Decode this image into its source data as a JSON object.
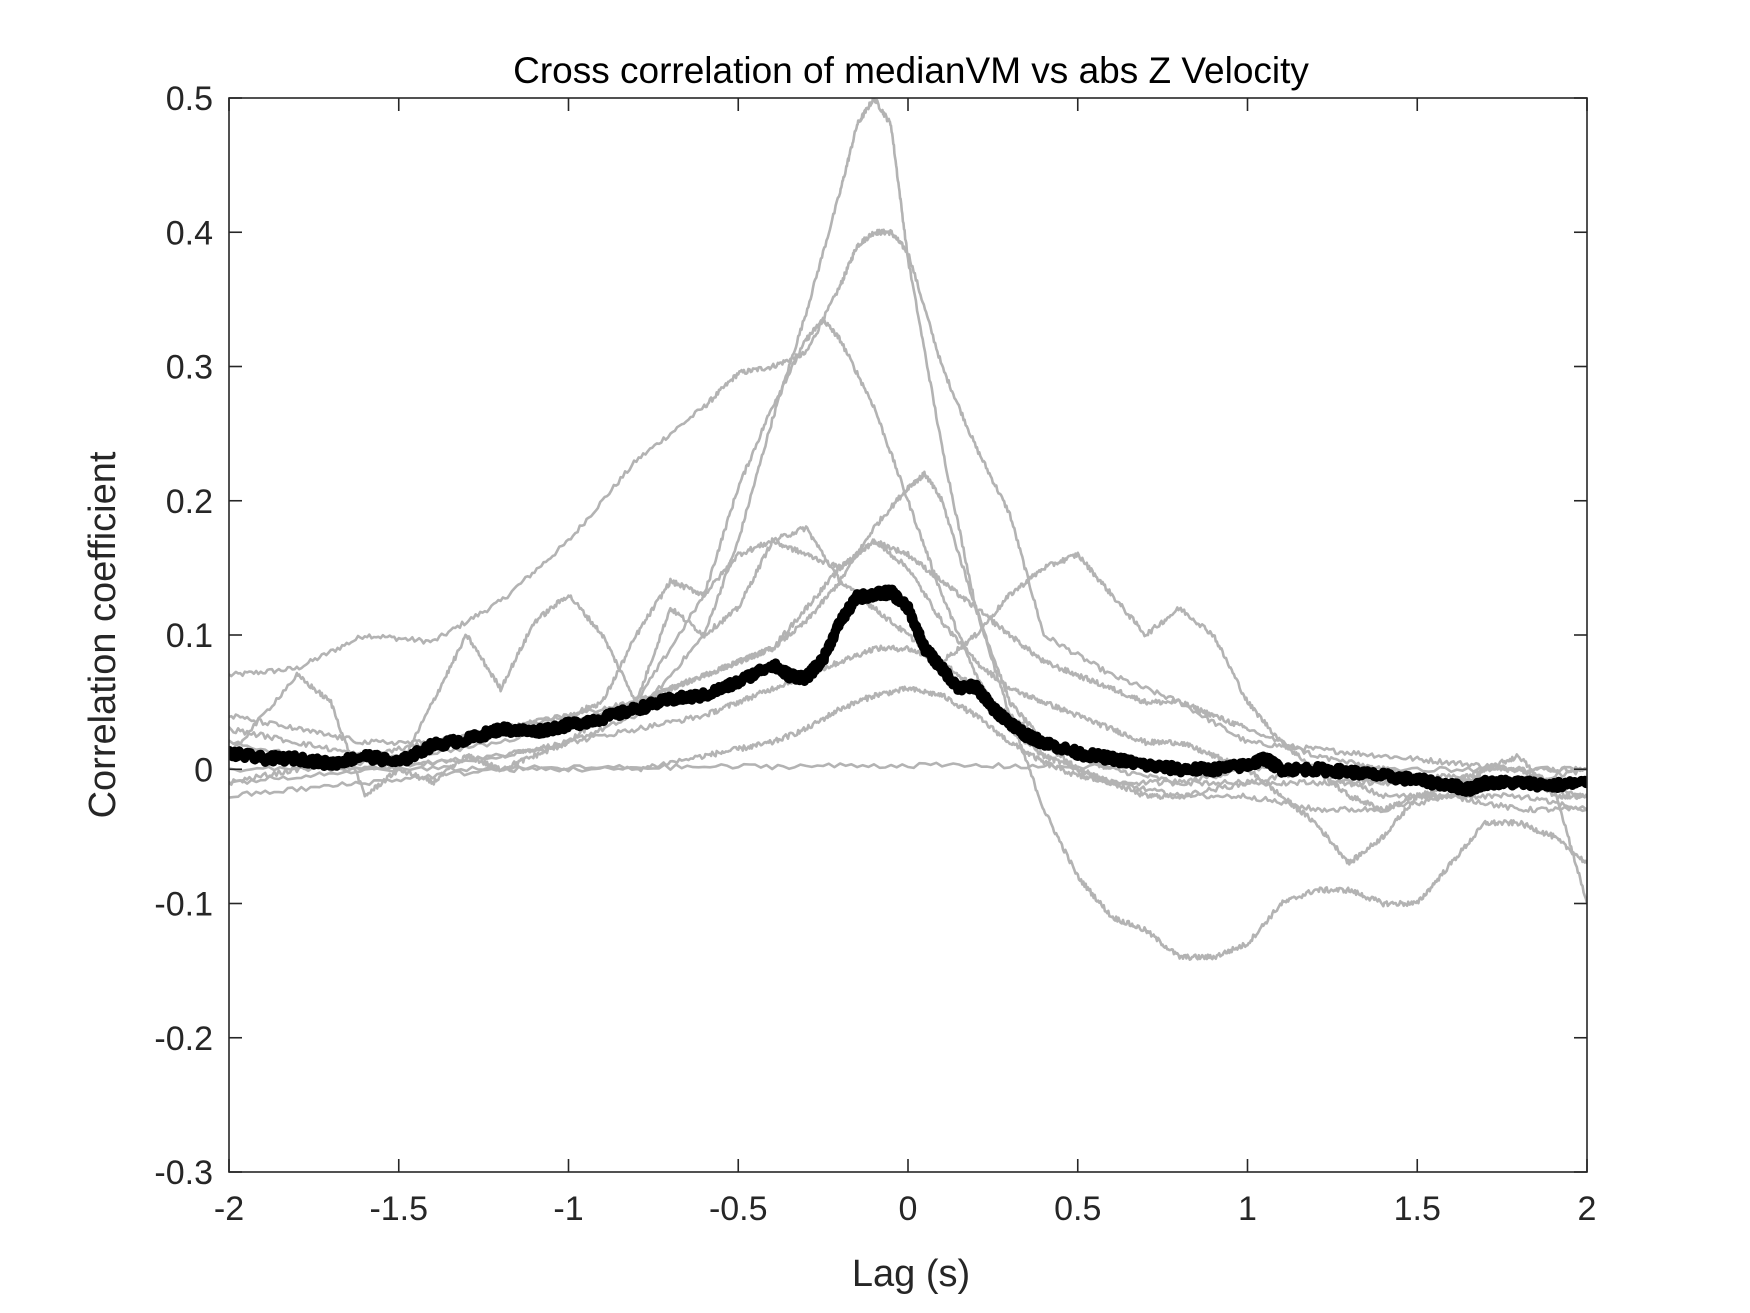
{
  "chart_data": {
    "type": "line",
    "title": "Cross correlation of medianVM vs abs Z Velocity",
    "xlabel": "Lag (s)",
    "ylabel": "Correlation coefficient",
    "xlim": [
      -2,
      2
    ],
    "ylim": [
      -0.3,
      0.5
    ],
    "xticks": [
      -2,
      -1.5,
      -1,
      -0.5,
      0,
      0.5,
      1,
      1.5,
      2
    ],
    "xtick_labels": [
      "-2",
      "-1.5",
      "-1",
      "-0.5",
      "0",
      "0.5",
      "1",
      "1.5",
      "2"
    ],
    "yticks": [
      -0.3,
      -0.2,
      -0.1,
      0,
      0.1,
      0.2,
      0.3,
      0.4,
      0.5
    ],
    "ytick_labels": [
      "-0.3",
      "-0.2",
      "-0.1",
      "0",
      "0.1",
      "0.2",
      "0.3",
      "0.4",
      "0.5"
    ],
    "grid": false,
    "legend": false,
    "colors": {
      "individual": "#b3b3b3",
      "mean": "#000000",
      "axes": "#262626"
    },
    "series": [
      {
        "style": "individual",
        "x": [
          -2,
          -1.8,
          -1.6,
          -1.4,
          -1.2,
          -1.0,
          -0.8,
          -0.6,
          -0.5,
          -0.4,
          -0.3,
          -0.2,
          -0.15,
          -0.1,
          -0.05,
          0,
          0.1,
          0.2,
          0.3,
          0.4,
          0.6,
          0.8,
          1.0,
          1.2,
          1.4,
          1.6,
          1.8,
          2.0
        ],
        "y": [
          0.07,
          0.075,
          0.1,
          0.095,
          0.125,
          0.17,
          0.23,
          0.27,
          0.295,
          0.3,
          0.31,
          0.36,
          0.39,
          0.4,
          0.4,
          0.385,
          0.3,
          0.24,
          0.19,
          0.1,
          0.07,
          0.05,
          0.02,
          0.015,
          0.01,
          0.005,
          0.0,
          0.0
        ]
      },
      {
        "style": "individual",
        "x": [
          -2,
          -1.6,
          -1.2,
          -1.0,
          -0.8,
          -0.6,
          -0.5,
          -0.4,
          -0.3,
          -0.2,
          -0.15,
          -0.1,
          -0.05,
          0,
          0.1,
          0.2,
          0.3,
          0.4,
          0.5,
          0.6,
          0.8,
          1.0,
          1.2,
          1.4,
          1.6,
          1.8,
          2.0
        ],
        "y": [
          0.02,
          0.0,
          0.01,
          0.02,
          0.04,
          0.1,
          0.17,
          0.26,
          0.34,
          0.43,
          0.48,
          0.5,
          0.48,
          0.38,
          0.24,
          0.12,
          0.05,
          0.02,
          0.01,
          0.0,
          -0.01,
          0.0,
          0.0,
          -0.01,
          -0.005,
          -0.01,
          0.0
        ]
      },
      {
        "style": "individual",
        "x": [
          -2,
          -1.6,
          -1.2,
          -0.8,
          -0.6,
          -0.5,
          -0.4,
          -0.3,
          -0.25,
          -0.2,
          -0.1,
          0,
          0.1,
          0.2,
          0.3,
          0.4,
          0.5,
          0.6,
          0.8,
          1.0,
          1.2,
          1.4,
          1.6,
          1.8,
          2.0
        ],
        "y": [
          0.01,
          0.005,
          0.02,
          0.05,
          0.13,
          0.21,
          0.27,
          0.32,
          0.335,
          0.32,
          0.27,
          0.2,
          0.13,
          0.07,
          0.03,
          0.01,
          0.0,
          -0.01,
          -0.02,
          -0.01,
          0.0,
          -0.02,
          -0.02,
          -0.03,
          -0.03
        ]
      },
      {
        "style": "individual",
        "x": [
          -2,
          -1.8,
          -1.6,
          -1.5,
          -1.4,
          -1.3,
          -1.2,
          -1.1,
          -1.0,
          -0.9,
          -0.8,
          -0.7,
          -0.6,
          -0.5,
          -0.4,
          -0.3,
          -0.2,
          -0.1,
          0,
          0.05,
          0.1,
          0.2,
          0.3,
          0.4,
          0.5,
          0.6,
          0.7,
          0.8,
          0.9,
          1.0,
          1.1,
          1.2,
          1.3,
          1.4,
          1.5,
          1.6,
          1.7,
          1.8,
          1.9,
          2.0
        ],
        "y": [
          -0.01,
          0.0,
          0.01,
          0.0,
          -0.01,
          0.01,
          0.0,
          0.01,
          0.02,
          0.04,
          0.05,
          0.06,
          0.07,
          0.08,
          0.09,
          0.11,
          0.14,
          0.18,
          0.21,
          0.22,
          0.2,
          0.12,
          0.04,
          -0.03,
          -0.08,
          -0.11,
          -0.12,
          -0.14,
          -0.14,
          -0.13,
          -0.1,
          -0.09,
          -0.09,
          -0.1,
          -0.1,
          -0.07,
          -0.04,
          -0.04,
          -0.05,
          -0.07
        ]
      },
      {
        "style": "individual",
        "x": [
          -2,
          -1.8,
          -1.7,
          -1.6,
          -1.5,
          -1.4,
          -1.3,
          -1.2,
          -1.1,
          -1.0,
          -0.9,
          -0.8,
          -0.7,
          -0.6,
          -0.5,
          -0.4,
          -0.3,
          -0.2,
          -0.1,
          0,
          0.1,
          0.2,
          0.3,
          0.4,
          0.5,
          0.6,
          0.7,
          0.8,
          0.9,
          1.0,
          1.1,
          1.2,
          1.3,
          1.4,
          1.5,
          1.6,
          1.7,
          1.8,
          1.9,
          2.0
        ],
        "y": [
          0.01,
          0.07,
          0.05,
          -0.02,
          0.0,
          0.05,
          0.1,
          0.06,
          0.11,
          0.13,
          0.1,
          0.05,
          0.12,
          0.1,
          0.12,
          0.17,
          0.18,
          0.14,
          0.12,
          0.1,
          0.08,
          0.1,
          0.13,
          0.15,
          0.16,
          0.13,
          0.1,
          0.12,
          0.1,
          0.05,
          0.02,
          0.0,
          -0.02,
          -0.03,
          -0.02,
          -0.02,
          0.0,
          0.01,
          -0.02,
          -0.02
        ]
      },
      {
        "style": "individual",
        "x": [
          -2,
          -1.8,
          -1.6,
          -1.4,
          -1.2,
          -1.0,
          -0.9,
          -0.8,
          -0.7,
          -0.6,
          -0.5,
          -0.4,
          -0.3,
          -0.2,
          -0.1,
          0,
          0.1,
          0.2,
          0.3,
          0.4,
          0.5,
          0.6,
          0.7,
          0.8,
          0.9,
          1.0,
          1.1,
          1.2,
          1.3,
          1.4,
          1.5,
          1.6,
          1.7,
          1.8,
          1.9,
          2.0
        ],
        "y": [
          0.03,
          0.02,
          0.01,
          0.02,
          0.03,
          0.04,
          0.05,
          0.1,
          0.14,
          0.13,
          0.16,
          0.17,
          0.16,
          0.15,
          0.17,
          0.15,
          0.11,
          0.08,
          0.06,
          0.05,
          0.04,
          0.03,
          0.02,
          0.02,
          0.01,
          0.0,
          -0.02,
          -0.04,
          -0.07,
          -0.05,
          -0.02,
          -0.01,
          0.0,
          0.0,
          -0.01,
          -0.1
        ]
      },
      {
        "style": "individual",
        "x": [
          -2,
          -1.8,
          -1.6,
          -1.4,
          -1.2,
          -1.0,
          -0.8,
          -0.6,
          -0.5,
          -0.4,
          -0.3,
          -0.2,
          -0.1,
          0,
          0.1,
          0.2,
          0.3,
          0.4,
          0.5,
          0.6,
          0.7,
          0.8,
          0.9,
          1.0,
          1.2,
          1.4,
          1.6,
          1.8,
          2.0
        ],
        "y": [
          0.04,
          0.03,
          0.02,
          0.02,
          0.03,
          0.04,
          0.05,
          0.07,
          0.08,
          0.09,
          0.12,
          0.15,
          0.17,
          0.16,
          0.14,
          0.12,
          0.1,
          0.08,
          0.07,
          0.06,
          0.05,
          0.05,
          0.04,
          0.03,
          0.01,
          0.0,
          -0.01,
          -0.01,
          -0.02
        ]
      },
      {
        "style": "individual",
        "x": [
          -2,
          -1.6,
          -1.2,
          -1.0,
          -0.8,
          -0.6,
          -0.5,
          -0.4,
          -0.3,
          -0.2,
          -0.1,
          0,
          0.1,
          0.2,
          0.3,
          0.4,
          0.5,
          0.6,
          0.7,
          0.8,
          1.0,
          1.2,
          1.4,
          1.6,
          1.8,
          2.0
        ],
        "y": [
          -0.01,
          0.0,
          0.01,
          0.02,
          0.03,
          0.04,
          0.05,
          0.06,
          0.07,
          0.08,
          0.09,
          0.09,
          0.08,
          0.06,
          0.04,
          0.02,
          0.0,
          -0.01,
          -0.02,
          -0.02,
          -0.02,
          -0.03,
          -0.03,
          -0.02,
          -0.02,
          -0.03
        ]
      },
      {
        "style": "individual",
        "x": [
          -2,
          -1.6,
          -1.2,
          -0.8,
          -0.6,
          -0.5,
          -0.4,
          -0.3,
          -0.2,
          -0.1,
          0,
          0.1,
          0.2,
          0.3,
          0.4,
          0.5,
          0.6,
          0.8,
          1.0,
          1.2,
          1.4,
          1.6,
          1.8,
          2.0
        ],
        "y": [
          -0.02,
          -0.01,
          0.0,
          0.0,
          0.01,
          0.015,
          0.02,
          0.03,
          0.045,
          0.055,
          0.06,
          0.055,
          0.04,
          0.02,
          0.005,
          -0.005,
          -0.01,
          -0.01,
          -0.01,
          -0.01,
          -0.01,
          -0.01,
          -0.01,
          -0.01
        ]
      },
      {
        "style": "individual",
        "x": [
          -2,
          -1.5,
          -1.0,
          -0.5,
          0,
          0.5,
          1.0,
          1.5,
          2.0
        ],
        "y": [
          0.0,
          0.0,
          0.001,
          0.002,
          0.003,
          0.002,
          0.001,
          0.0,
          0.0
        ]
      },
      {
        "style": "mean",
        "x": [
          -2,
          -1.9,
          -1.8,
          -1.7,
          -1.6,
          -1.5,
          -1.4,
          -1.3,
          -1.2,
          -1.1,
          -1.0,
          -0.9,
          -0.8,
          -0.7,
          -0.6,
          -0.5,
          -0.4,
          -0.35,
          -0.3,
          -0.25,
          -0.2,
          -0.15,
          -0.1,
          -0.05,
          0,
          0.05,
          0.1,
          0.15,
          0.2,
          0.25,
          0.3,
          0.35,
          0.4,
          0.5,
          0.6,
          0.7,
          0.8,
          0.9,
          1.0,
          1.05,
          1.1,
          1.2,
          1.3,
          1.4,
          1.5,
          1.6,
          1.65,
          1.7,
          1.8,
          1.9,
          2.0
        ],
        "y": [
          0.012,
          0.008,
          0.008,
          0.004,
          0.01,
          0.005,
          0.018,
          0.022,
          0.03,
          0.028,
          0.033,
          0.038,
          0.045,
          0.052,
          0.055,
          0.065,
          0.078,
          0.07,
          0.068,
          0.082,
          0.11,
          0.128,
          0.13,
          0.132,
          0.12,
          0.09,
          0.075,
          0.06,
          0.062,
          0.045,
          0.035,
          0.025,
          0.02,
          0.012,
          0.008,
          0.003,
          0.0,
          0.0,
          0.003,
          0.008,
          0.0,
          0.0,
          -0.002,
          -0.005,
          -0.008,
          -0.012,
          -0.015,
          -0.01,
          -0.01,
          -0.012,
          -0.01
        ]
      }
    ]
  }
}
